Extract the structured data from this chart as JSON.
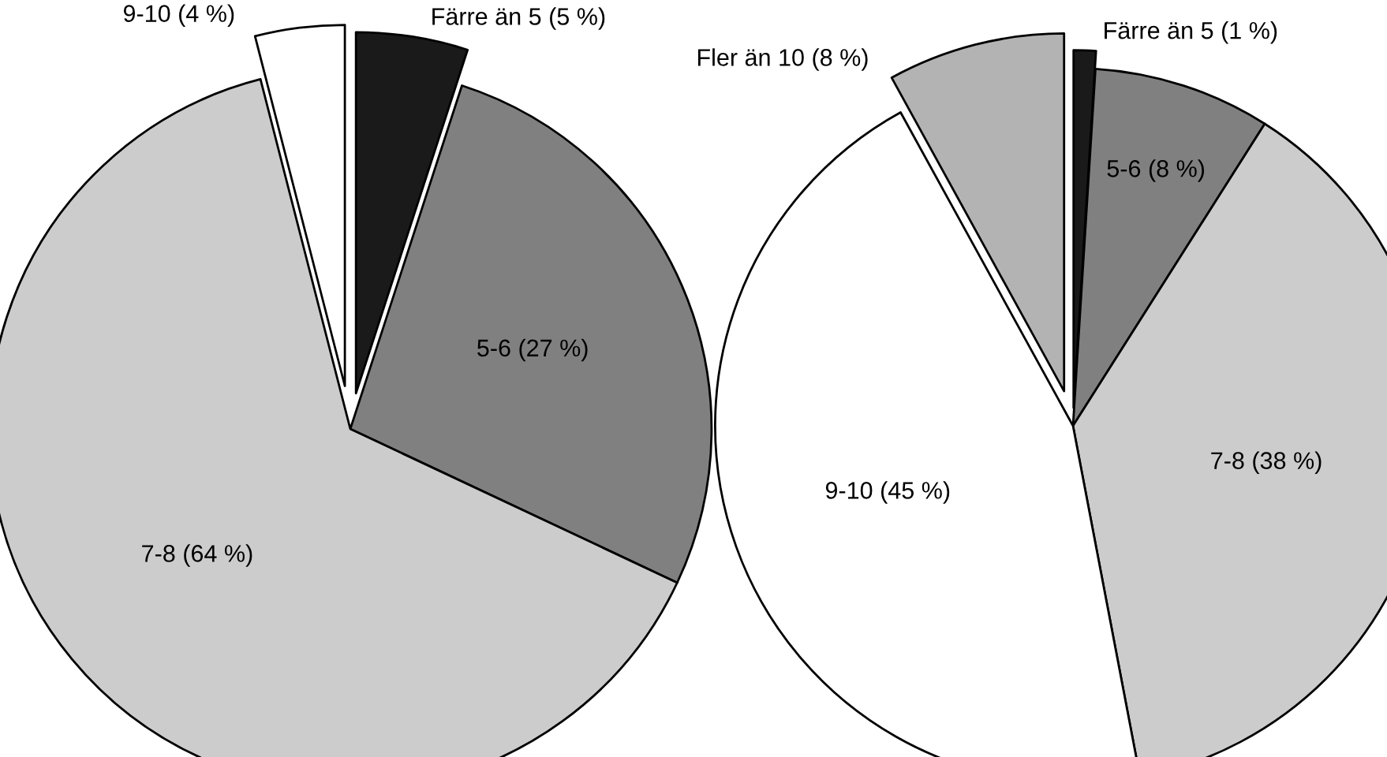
{
  "chart_data": [
    {
      "type": "pie",
      "categories": [
        "Färre än 5 (5 %)",
        "5-6 (27 %)",
        "7-8 (64 %)",
        "9-10 (4 %)"
      ],
      "values": [
        5,
        27,
        64,
        4
      ],
      "colors": [
        "#1a1a1a",
        "#808080",
        "#cccccc",
        "#ffffff"
      ],
      "legend": false
    },
    {
      "type": "pie",
      "categories": [
        "Färre än 5 (1 %)",
        "5-6 (8 %)",
        "7-8 (38 %)",
        "9-10 (45 %)",
        "Fler än 10 (8 %)"
      ],
      "values": [
        1,
        8,
        38,
        45,
        8
      ],
      "colors": [
        "#1a1a1a",
        "#808080",
        "#cccccc",
        "#ffffff",
        "#b3b3b3"
      ],
      "legend": false
    }
  ]
}
